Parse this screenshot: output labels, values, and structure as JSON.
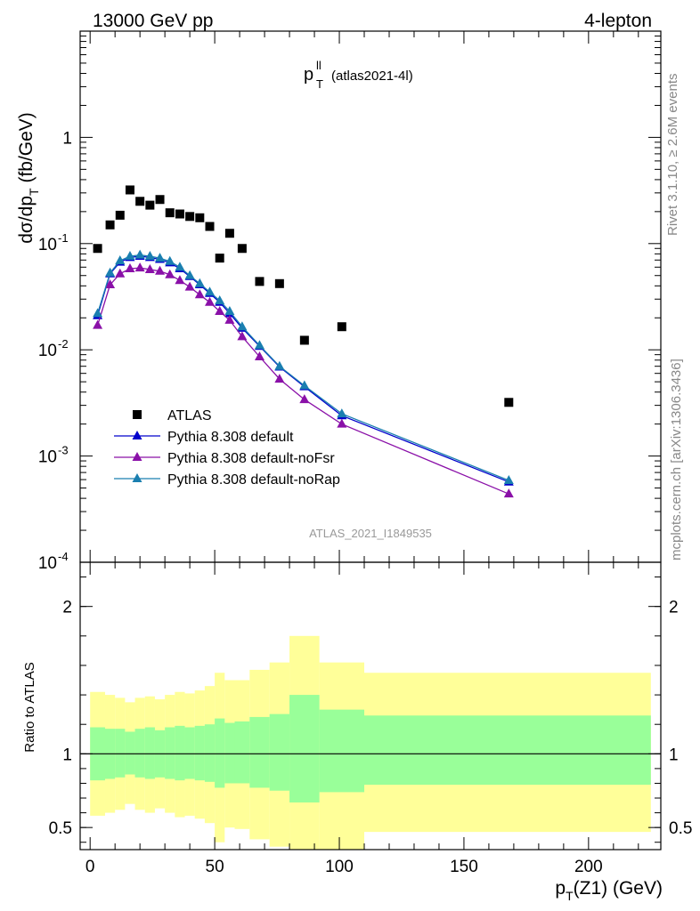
{
  "header": {
    "left": "13000 GeV pp",
    "right": "4-lepton",
    "plot_title_main": "p",
    "plot_title_sup": "ll",
    "plot_title_sub": "T",
    "plot_title_tag": "(atlas2021-4l)",
    "side_label_top": "Rivet 3.1.10, ≥ 2.6M events",
    "side_label_bottom": "mcplots.cern.ch [arXiv:1306.3436]",
    "analysis_watermark": "ATLAS_2021_I1849535"
  },
  "colors": {
    "atlas": "#000000",
    "default": "#0000cc",
    "noFsr": "#8a10a8",
    "noRap": "#1a7fb0",
    "band_inner": "#99ff99",
    "band_outer": "#ffff99"
  },
  "chart_data": [
    {
      "type": "scatter",
      "panel": "main",
      "yscale": "log",
      "ylabel": "dσ/dp_T (fb/GeV)",
      "xlim": [
        -4,
        229
      ],
      "ylim": [
        0.0001,
        10
      ],
      "ytick_labels": [
        "10^-4",
        "10^-3",
        "10^-2",
        "10^-1",
        "1"
      ],
      "legend_position": "lower-left",
      "series": [
        {
          "name": "ATLAS",
          "marker": "square",
          "x": [
            3,
            8,
            12,
            16,
            20,
            24,
            28,
            32,
            36,
            40,
            44,
            48,
            52,
            56,
            61,
            68,
            76,
            86,
            101,
            168
          ],
          "y": [
            0.09,
            0.15,
            0.185,
            0.32,
            0.25,
            0.23,
            0.26,
            0.195,
            0.19,
            0.18,
            0.175,
            0.145,
            0.073,
            0.125,
            0.09,
            0.044,
            0.042,
            0.0123,
            0.0165,
            0.0032
          ]
        },
        {
          "name": "Pythia 8.308 default",
          "marker": "triangle",
          "x": [
            3,
            8,
            12,
            16,
            20,
            24,
            28,
            32,
            36,
            40,
            44,
            48,
            52,
            56,
            61,
            68,
            76,
            86,
            101,
            168
          ],
          "y": [
            0.021,
            0.052,
            0.067,
            0.074,
            0.076,
            0.074,
            0.071,
            0.066,
            0.058,
            0.049,
            0.041,
            0.034,
            0.028,
            0.022,
            0.016,
            0.0108,
            0.0069,
            0.0045,
            0.0024,
            0.00057
          ]
        },
        {
          "name": "Pythia 8.308 default-noFsr",
          "marker": "triangle",
          "x": [
            3,
            8,
            12,
            16,
            20,
            24,
            28,
            32,
            36,
            40,
            44,
            48,
            52,
            56,
            61,
            68,
            76,
            86,
            101,
            168
          ],
          "y": [
            0.017,
            0.041,
            0.052,
            0.058,
            0.059,
            0.057,
            0.055,
            0.051,
            0.045,
            0.039,
            0.033,
            0.028,
            0.023,
            0.019,
            0.0133,
            0.0086,
            0.0053,
            0.0034,
            0.002,
            0.00044
          ]
        },
        {
          "name": "Pythia 8.308 default-noRap",
          "marker": "triangle",
          "x": [
            3,
            8,
            12,
            16,
            20,
            24,
            28,
            32,
            36,
            40,
            44,
            48,
            52,
            56,
            61,
            68,
            76,
            86,
            101,
            168
          ],
          "y": [
            0.022,
            0.053,
            0.069,
            0.076,
            0.078,
            0.076,
            0.073,
            0.068,
            0.06,
            0.05,
            0.042,
            0.035,
            0.029,
            0.023,
            0.0165,
            0.011,
            0.007,
            0.0046,
            0.0025,
            0.00059
          ]
        }
      ]
    },
    {
      "type": "area",
      "panel": "ratio",
      "ylabel": "Ratio to ATLAS",
      "xlabel": "p_T(Z1) (GeV)",
      "xlim": [
        -4,
        229
      ],
      "ylim": [
        0.35,
        2.3
      ],
      "xticks": [
        0,
        50,
        100,
        150,
        200
      ],
      "yticks": [
        0.5,
        1,
        2
      ],
      "reference_line": 1,
      "bins": [
        {
          "lo": 0,
          "hi": 6,
          "inner": [
            0.82,
            1.18
          ],
          "outer": [
            0.58,
            1.42
          ]
        },
        {
          "lo": 6,
          "hi": 10,
          "inner": [
            0.83,
            1.17
          ],
          "outer": [
            0.6,
            1.4
          ]
        },
        {
          "lo": 10,
          "hi": 14,
          "inner": [
            0.84,
            1.17
          ],
          "outer": [
            0.62,
            1.38
          ]
        },
        {
          "lo": 14,
          "hi": 18,
          "inner": [
            0.86,
            1.15
          ],
          "outer": [
            0.66,
            1.35
          ]
        },
        {
          "lo": 18,
          "hi": 22,
          "inner": [
            0.84,
            1.17
          ],
          "outer": [
            0.62,
            1.38
          ]
        },
        {
          "lo": 22,
          "hi": 26,
          "inner": [
            0.83,
            1.18
          ],
          "outer": [
            0.6,
            1.39
          ]
        },
        {
          "lo": 26,
          "hi": 30,
          "inner": [
            0.84,
            1.16
          ],
          "outer": [
            0.63,
            1.37
          ]
        },
        {
          "lo": 30,
          "hi": 34,
          "inner": [
            0.83,
            1.18
          ],
          "outer": [
            0.6,
            1.4
          ]
        },
        {
          "lo": 34,
          "hi": 38,
          "inner": [
            0.82,
            1.19
          ],
          "outer": [
            0.57,
            1.42
          ]
        },
        {
          "lo": 38,
          "hi": 42,
          "inner": [
            0.83,
            1.18
          ],
          "outer": [
            0.58,
            1.41
          ]
        },
        {
          "lo": 42,
          "hi": 46,
          "inner": [
            0.82,
            1.19
          ],
          "outer": [
            0.56,
            1.43
          ]
        },
        {
          "lo": 46,
          "hi": 50,
          "inner": [
            0.81,
            1.2
          ],
          "outer": [
            0.53,
            1.46
          ]
        },
        {
          "lo": 50,
          "hi": 54,
          "inner": [
            0.77,
            1.24
          ],
          "outer": [
            0.4,
            1.55
          ]
        },
        {
          "lo": 54,
          "hi": 58,
          "inner": [
            0.8,
            1.21
          ],
          "outer": [
            0.5,
            1.5
          ]
        },
        {
          "lo": 58,
          "hi": 64,
          "inner": [
            0.8,
            1.22
          ],
          "outer": [
            0.49,
            1.5
          ]
        },
        {
          "lo": 64,
          "hi": 72,
          "inner": [
            0.77,
            1.25
          ],
          "outer": [
            0.42,
            1.57
          ]
        },
        {
          "lo": 72,
          "hi": 80,
          "inner": [
            0.75,
            1.27
          ],
          "outer": [
            0.37,
            1.62
          ]
        },
        {
          "lo": 80,
          "hi": 92,
          "inner": [
            0.67,
            1.4
          ],
          "outer": [
            0.25,
            1.8
          ]
        },
        {
          "lo": 92,
          "hi": 110,
          "inner": [
            0.74,
            1.3
          ],
          "outer": [
            0.3,
            1.62
          ]
        },
        {
          "lo": 110,
          "hi": 225,
          "inner": [
            0.79,
            1.26
          ],
          "outer": [
            0.47,
            1.55
          ]
        }
      ]
    }
  ]
}
